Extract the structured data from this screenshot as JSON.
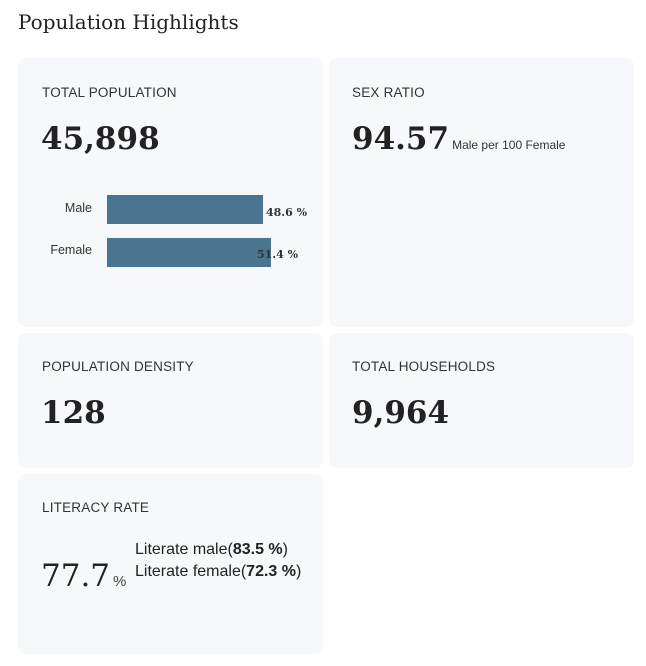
{
  "page": {
    "title": "Population Highlights"
  },
  "total_population": {
    "label": "TOTAL POPULATION",
    "value": "45,898",
    "bars": [
      {
        "name": "Male",
        "fraction": 0.486,
        "value_label": "48.6 %"
      },
      {
        "name": "Female",
        "fraction": 0.514,
        "value_label": "51.4 %"
      }
    ],
    "bar_color": "#497591"
  },
  "sex_ratio": {
    "label": "SEX RATIO",
    "value": "94.57",
    "unit": "Male per 100 Female"
  },
  "population_density": {
    "label": "POPULATION DENSITY",
    "value": "128"
  },
  "total_households": {
    "label": "TOTAL HOUSEHOLDS",
    "value": "9,964"
  },
  "literacy_rate": {
    "label": "LITERACY RATE",
    "value": "77.7",
    "percent_sign": "%",
    "male_prefix": "Literate male(",
    "male_value": "83.5 %",
    "male_suffix": ")",
    "female_prefix": "Literate female(",
    "female_value": "72.3 %",
    "female_suffix": ")"
  }
}
